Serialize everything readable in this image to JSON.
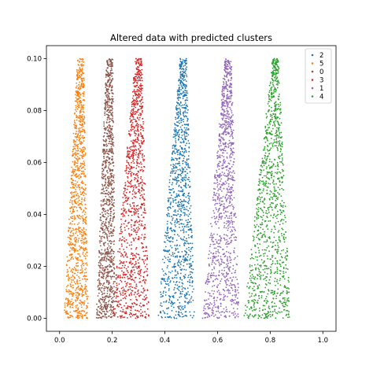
{
  "chart_data": {
    "type": "scatter",
    "title": "Altered data with predicted clusters",
    "xlabel": "",
    "ylabel": "",
    "xlim": [
      -0.05,
      1.05
    ],
    "ylim": [
      -0.005,
      0.105
    ],
    "xticks": [
      "0.0",
      "0.2",
      "0.4",
      "0.6",
      "0.8",
      "1.0"
    ],
    "xtick_values": [
      0.0,
      0.2,
      0.4,
      0.6,
      0.8,
      1.0
    ],
    "yticks": [
      "0.00",
      "0.02",
      "0.04",
      "0.06",
      "0.08",
      "0.10"
    ],
    "ytick_values": [
      0.0,
      0.02,
      0.04,
      0.06,
      0.08,
      0.1
    ],
    "grid": false,
    "legend_position": "top-right",
    "series": [
      {
        "name": "2",
        "color": "#1f77b4",
        "x_range": [
          0.38,
          0.56
        ],
        "center_top": 0.47,
        "y_max": 0.1
      },
      {
        "name": "5",
        "color": "#ff7f0e",
        "x_range": [
          0.01,
          0.13
        ],
        "center_top": 0.08,
        "y_max": 0.1
      },
      {
        "name": "0",
        "color": "#8c564b",
        "x_range": [
          0.13,
          0.22
        ],
        "center_top": 0.19,
        "y_max": 0.1
      },
      {
        "name": "3",
        "color": "#d62728",
        "x_range": [
          0.2,
          0.38
        ],
        "center_top": 0.3,
        "y_max": 0.1
      },
      {
        "name": "1",
        "color": "#9467bd",
        "x_range": [
          0.55,
          0.73
        ],
        "center_top": 0.64,
        "y_max": 0.1
      },
      {
        "name": "4",
        "color": "#2ca02c",
        "x_range": [
          0.71,
          0.95
        ],
        "center_top": 0.82,
        "y_max": 0.1
      }
    ]
  }
}
